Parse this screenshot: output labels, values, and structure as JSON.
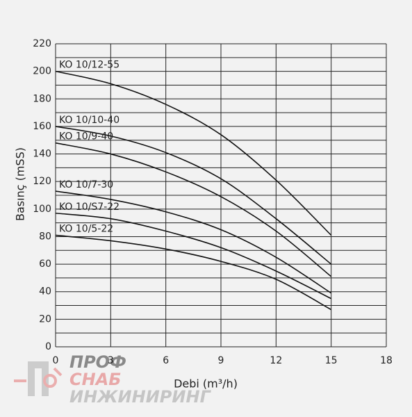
{
  "chart_data": {
    "type": "line",
    "x_label": "Debi (m³/h)",
    "y_label": "Basınç (mSS)",
    "xlim": [
      0,
      18
    ],
    "xticks": [
      0,
      3,
      6,
      9,
      12,
      15,
      18
    ],
    "ylim": [
      0,
      220
    ],
    "yticks": [
      0,
      20,
      40,
      60,
      80,
      100,
      120,
      140,
      160,
      180,
      200,
      220
    ],
    "yminor_ticks": [
      10,
      30,
      50,
      70,
      90,
      110,
      130,
      150,
      170,
      190,
      210
    ],
    "grid": true,
    "series": [
      {
        "name": "KO 10/12-55",
        "color": "#111111",
        "x": [
          0,
          3,
          6,
          9,
          12,
          15
        ],
        "values": [
          200,
          191,
          176,
          154,
          121,
          81
        ]
      },
      {
        "name": "KO 10/10-40",
        "color": "#111111",
        "x": [
          0,
          3,
          6,
          9,
          12,
          15
        ],
        "values": [
          160,
          153,
          141,
          122,
          93,
          60
        ]
      },
      {
        "name": "KO 10/9-40",
        "color": "#111111",
        "x": [
          0,
          3,
          6,
          9,
          12,
          15
        ],
        "values": [
          148,
          140,
          127,
          109,
          84,
          51
        ]
      },
      {
        "name": "KO 10/7-30",
        "color": "#111111",
        "x": [
          0,
          3,
          6,
          9,
          12,
          15
        ],
        "values": [
          113,
          107,
          98,
          85,
          65,
          39
        ]
      },
      {
        "name": "KO 10/S7-22",
        "color": "#111111",
        "x": [
          0,
          3,
          6,
          9,
          12,
          15
        ],
        "values": [
          97,
          93,
          84,
          72,
          55,
          35
        ]
      },
      {
        "name": "KO 10/5-22",
        "color": "#111111",
        "x": [
          0,
          3,
          6,
          9,
          12,
          15
        ],
        "values": [
          81,
          77,
          71,
          62,
          49,
          27
        ]
      }
    ]
  },
  "watermark": [
    "ПРОФ",
    "СНАБ",
    "ИНЖИНИРИНГ"
  ]
}
